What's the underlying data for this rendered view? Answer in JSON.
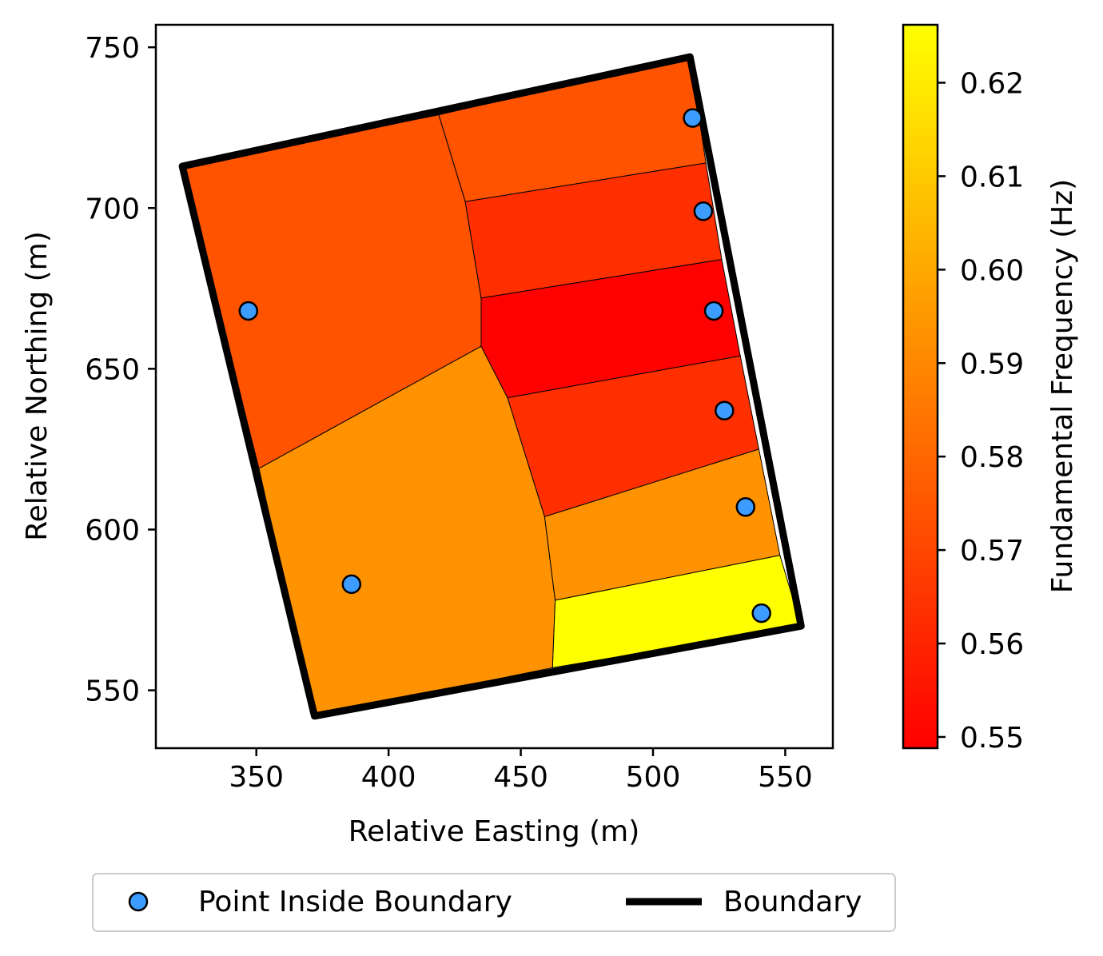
{
  "chart_data": {
    "type": "map",
    "xlabel": "Relative Easting (m)",
    "ylabel": "Relative Northing (m)",
    "xlim": [
      312,
      568
    ],
    "ylim": [
      532,
      757
    ],
    "xticks": [
      350,
      400,
      450,
      500,
      550
    ],
    "yticks": [
      550,
      600,
      650,
      700,
      750
    ],
    "grid": false,
    "colorbar": {
      "label": "Fundamental Frequency (Hz)",
      "colormap": "autumn",
      "range": [
        0.5488,
        0.6262
      ],
      "ticks": [
        "0.55",
        "0.56",
        "0.57",
        "0.58",
        "0.59",
        "0.60",
        "0.61",
        "0.62"
      ],
      "tick_values": [
        0.55,
        0.56,
        0.57,
        0.58,
        0.59,
        0.6,
        0.61,
        0.62
      ]
    },
    "boundary": {
      "name": "Boundary",
      "color": "#000000",
      "vertices": [
        [
          322,
          713
        ],
        [
          514,
          747
        ],
        [
          556,
          570
        ],
        [
          372,
          542
        ]
      ]
    },
    "points": {
      "name": "Point Inside Boundary",
      "color": "#3d9cff",
      "edge_color": "#000000",
      "xy": [
        [
          347,
          668
        ],
        [
          386,
          583
        ],
        [
          515,
          728
        ],
        [
          519,
          699
        ],
        [
          523,
          668
        ],
        [
          527,
          637
        ],
        [
          535,
          607
        ],
        [
          541,
          574
        ]
      ]
    },
    "cells": [
      {
        "value": 0.574,
        "vertices": [
          [
            322,
            713
          ],
          [
            419,
            729
          ],
          [
            429,
            702
          ],
          [
            435,
            672
          ],
          [
            435,
            657
          ],
          [
            351,
            619
          ]
        ]
      },
      {
        "value": 0.593,
        "vertices": [
          [
            351,
            619
          ],
          [
            435,
            657
          ],
          [
            445,
            641
          ],
          [
            459,
            604
          ],
          [
            463,
            578
          ],
          [
            462,
            557
          ],
          [
            372,
            542
          ]
        ]
      },
      {
        "value": 0.574,
        "vertices": [
          [
            419,
            729
          ],
          [
            514,
            747
          ],
          [
            520,
            714
          ],
          [
            429,
            702
          ]
        ]
      },
      {
        "value": 0.563,
        "vertices": [
          [
            429,
            702
          ],
          [
            520,
            714
          ],
          [
            526,
            684
          ],
          [
            435,
            672
          ]
        ]
      },
      {
        "value": 0.549,
        "vertices": [
          [
            435,
            672
          ],
          [
            526,
            684
          ],
          [
            533,
            654
          ],
          [
            445,
            641
          ],
          [
            435,
            657
          ]
        ]
      },
      {
        "value": 0.563,
        "vertices": [
          [
            445,
            641
          ],
          [
            533,
            654
          ],
          [
            540,
            625
          ],
          [
            459,
            604
          ]
        ]
      },
      {
        "value": 0.593,
        "vertices": [
          [
            459,
            604
          ],
          [
            540,
            625
          ],
          [
            548,
            592
          ],
          [
            463,
            578
          ]
        ]
      },
      {
        "value": 0.6262,
        "vertices": [
          [
            463,
            578
          ],
          [
            548,
            592
          ],
          [
            556,
            570
          ],
          [
            462,
            557
          ]
        ]
      }
    ],
    "legend": {
      "placement": "below",
      "entries": [
        "Point Inside Boundary",
        "Boundary"
      ]
    }
  }
}
